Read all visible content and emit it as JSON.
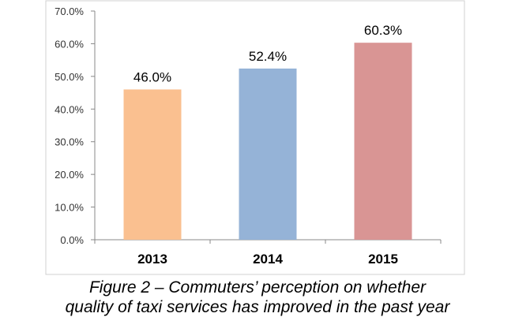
{
  "chart_data": {
    "type": "bar",
    "categories": [
      "2013",
      "2014",
      "2015"
    ],
    "values": [
      46.0,
      52.4,
      60.3
    ],
    "data_labels": [
      "46.0%",
      "52.4%",
      "60.3%"
    ],
    "colors": [
      "#FAC090",
      "#95B3D7",
      "#D99594"
    ],
    "ylim": [
      0,
      70
    ],
    "yticks": [
      0,
      10,
      20,
      30,
      40,
      50,
      60,
      70
    ],
    "ytick_labels": [
      "0.0%",
      "10.0%",
      "20.0%",
      "30.0%",
      "40.0%",
      "50.0%",
      "60.0%",
      "70.0%"
    ],
    "title": "",
    "xlabel": "",
    "ylabel": "",
    "grid": false,
    "legend": "none"
  },
  "caption": {
    "line1": "Figure 2 – Commuters’ perception on whether",
    "line2": "quality of taxi services has improved in the past year"
  },
  "colors": {
    "axis": "#888888",
    "tick_label": "#333333",
    "border": "#cccccc"
  }
}
